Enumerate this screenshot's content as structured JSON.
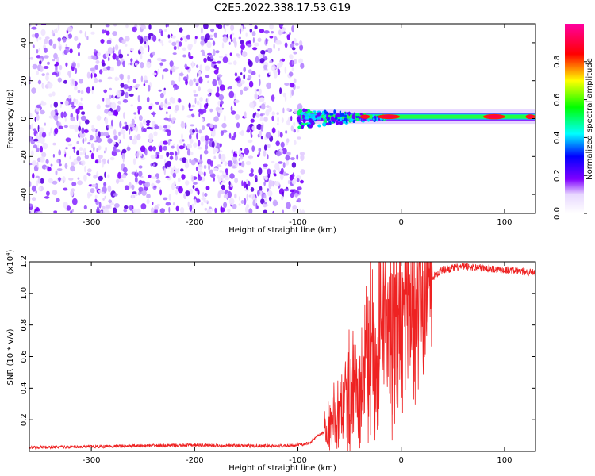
{
  "title": "C2E5.2022.338.17.53.G19",
  "chart_data": [
    {
      "type": "heatmap",
      "title": "",
      "xlabel": "Height of straight line (km)",
      "ylabel": "Frequency (Hz)",
      "xlim": [
        -360,
        130
      ],
      "ylim": [
        -50,
        50
      ],
      "x_ticks": [
        -300,
        -200,
        -100,
        0,
        100
      ],
      "y_ticks": [
        -40,
        -20,
        0,
        20,
        40
      ],
      "noise_region_x": [
        -360,
        -95
      ],
      "carrier_frequency": 1,
      "carrier_start_x": -100,
      "colorbar": {
        "label": "Normalized spectral amplitude",
        "range": [
          0.0,
          1.0
        ],
        "ticks": [
          0.0,
          0.2,
          0.4,
          0.6,
          0.8
        ],
        "colors": [
          "#ffffff",
          "#8000ff",
          "#0000ff",
          "#00ffff",
          "#00ff00",
          "#ffff00",
          "#ff0000",
          "#ff00ff"
        ]
      }
    },
    {
      "type": "line",
      "title": "",
      "xlabel": "Height of straight line (km)",
      "ylabel": "SNR (10 * v/v)",
      "y_scale_note": "(x10",
      "y_scale_exp": "4",
      "y_scale_close": ")",
      "xlim": [
        -360,
        130
      ],
      "ylim": [
        0,
        12000
      ],
      "x_ticks": [
        -300,
        -200,
        -100,
        0,
        100
      ],
      "y_ticks": [
        0.2,
        0.4,
        0.6,
        0.8,
        1.0,
        1.2
      ],
      "series": [
        {
          "color": "#ee2222",
          "x": [
            -360,
            -300,
            -250,
            -200,
            -150,
            -110,
            -90,
            -70,
            -60,
            -50,
            -40,
            -30,
            -25,
            -20,
            -15,
            -10,
            -5,
            0,
            10,
            20,
            30,
            40,
            60,
            80,
            100,
            130
          ],
          "y": [
            250,
            300,
            350,
            400,
            350,
            350,
            500,
            1500,
            2500,
            4000,
            3500,
            6000,
            5000,
            7000,
            6500,
            7500,
            8000,
            9000,
            10000,
            10500,
            11000,
            11500,
            11700,
            11600,
            11500,
            11300
          ]
        }
      ]
    }
  ]
}
